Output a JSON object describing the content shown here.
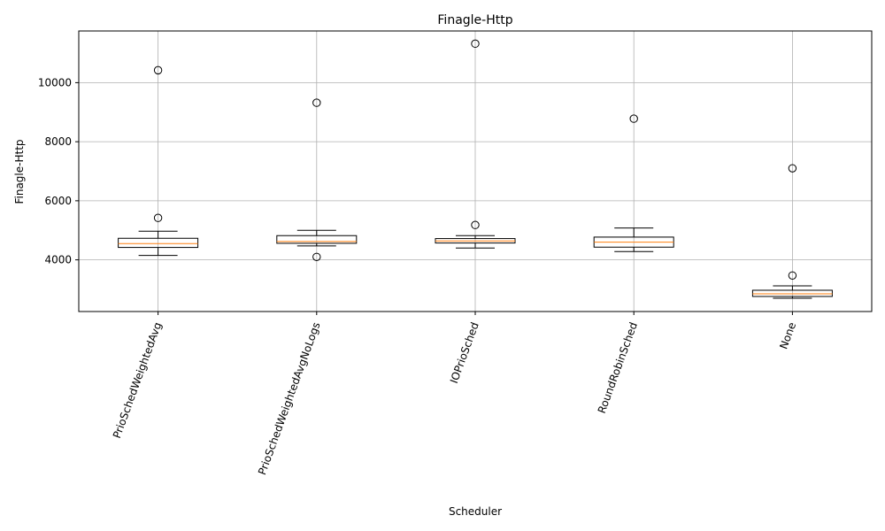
{
  "chart_data": {
    "type": "box",
    "title": "Finagle-Http",
    "xlabel": "Scheduler",
    "ylabel": "Finagle-Http",
    "ylim": [
      2250,
      11750
    ],
    "yticks": [
      4000,
      6000,
      8000,
      10000
    ],
    "grid": true,
    "categories": [
      "PrioSchedWeightedAvg",
      "PrioSchedWeightedAvgNoLogs",
      "IOPrioSched",
      "RoundRobinSched",
      "None"
    ],
    "boxes": [
      {
        "whisker_low": 4150,
        "q1": 4420,
        "median": 4550,
        "q3": 4730,
        "whisker_high": 4970,
        "outliers": [
          5420,
          10420
        ]
      },
      {
        "whisker_low": 4470,
        "q1": 4560,
        "median": 4620,
        "q3": 4820,
        "whisker_high": 5000,
        "outliers": [
          4100,
          9320
        ]
      },
      {
        "whisker_low": 4400,
        "q1": 4570,
        "median": 4640,
        "q3": 4720,
        "whisker_high": 4820,
        "outliers": [
          5180,
          11320
        ]
      },
      {
        "whisker_low": 4280,
        "q1": 4430,
        "median": 4600,
        "q3": 4770,
        "whisker_high": 5080,
        "outliers": [
          8780
        ]
      },
      {
        "whisker_low": 2700,
        "q1": 2760,
        "median": 2850,
        "q3": 2970,
        "whisker_high": 3120,
        "outliers": [
          3470,
          7100
        ]
      }
    ],
    "colors": {
      "box": "#000000",
      "median": "#ff7f0e",
      "grid": "#b0b0b0"
    }
  }
}
